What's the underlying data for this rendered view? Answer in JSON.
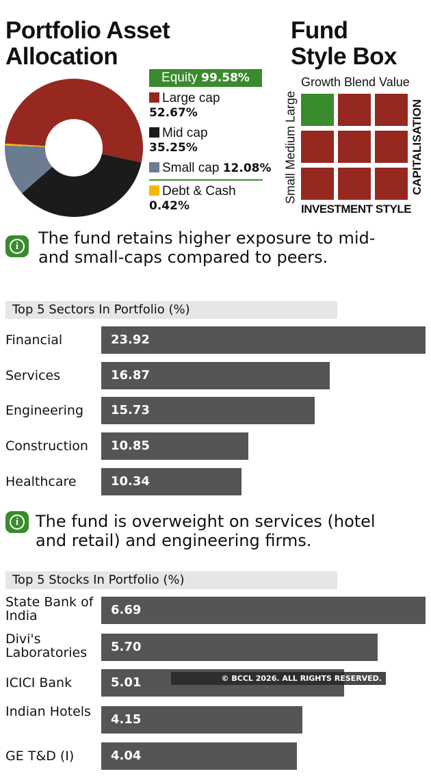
{
  "allocation": {
    "title_line1": "Portfolio Asset",
    "title_line2": "Allocation",
    "equity_label": "Equity",
    "equity_value": "99.58%",
    "colors": {
      "large": "#96281f",
      "mid": "#1c1a1a",
      "small": "#6b7b90",
      "debt": "#f5b800",
      "equity": "#3a8a2e"
    }
  },
  "stylebox": {
    "title_line1": "Fund",
    "title_line2": "Style Box",
    "columns": "Growth Blend Value",
    "rows": "Small Medium Large",
    "right_label": "CAPITALISATION",
    "bottom_label": "INVESTMENT STYLE",
    "highlighted": "Large Growth"
  },
  "note1": {
    "line1": "The fund retains higher exposure to mid-",
    "line2": "and small-caps compared to peers."
  },
  "note2": {
    "line1": "The fund is overweight on services (hotel",
    "line2": "and retail) and engineering firms."
  },
  "watermark": "© BCCL 2026. ALL RIGHTS RESERVED.",
  "chart_data": [
    {
      "type": "pie",
      "slices": [
        {
          "name": "Large cap",
          "value": 52.67,
          "label": "52.67%"
        },
        {
          "name": "Mid cap",
          "value": 35.25,
          "label": "35.25%"
        },
        {
          "name": "Small cap",
          "value": 12.08,
          "label": "12.08%"
        },
        {
          "name": "Debt & Cash",
          "value": 0.42,
          "label": "0.42%"
        }
      ],
      "donut": true
    },
    {
      "type": "bar",
      "title": "Top 5 Sectors In Portfolio (%)",
      "categories": [
        "Financial",
        "Services",
        "Engineering",
        "Construction",
        "Healthcare"
      ],
      "values": [
        23.92,
        16.87,
        15.73,
        10.85,
        10.34
      ],
      "labels": [
        "23.92",
        "16.87",
        "15.73",
        "10.85",
        "10.34"
      ],
      "orientation": "horizontal"
    },
    {
      "type": "bar",
      "title": "Top 5 Stocks In Portfolio (%)",
      "categories": [
        "State Bank of India",
        "Divi's Laboratories",
        "ICICI Bank",
        "Indian Hotels",
        "GE T&D (I)"
      ],
      "values": [
        6.69,
        5.7,
        5.01,
        4.15,
        4.04
      ],
      "labels": [
        "6.69",
        "5.70",
        "5.01",
        "4.15",
        "4.04"
      ],
      "orientation": "horizontal"
    }
  ]
}
